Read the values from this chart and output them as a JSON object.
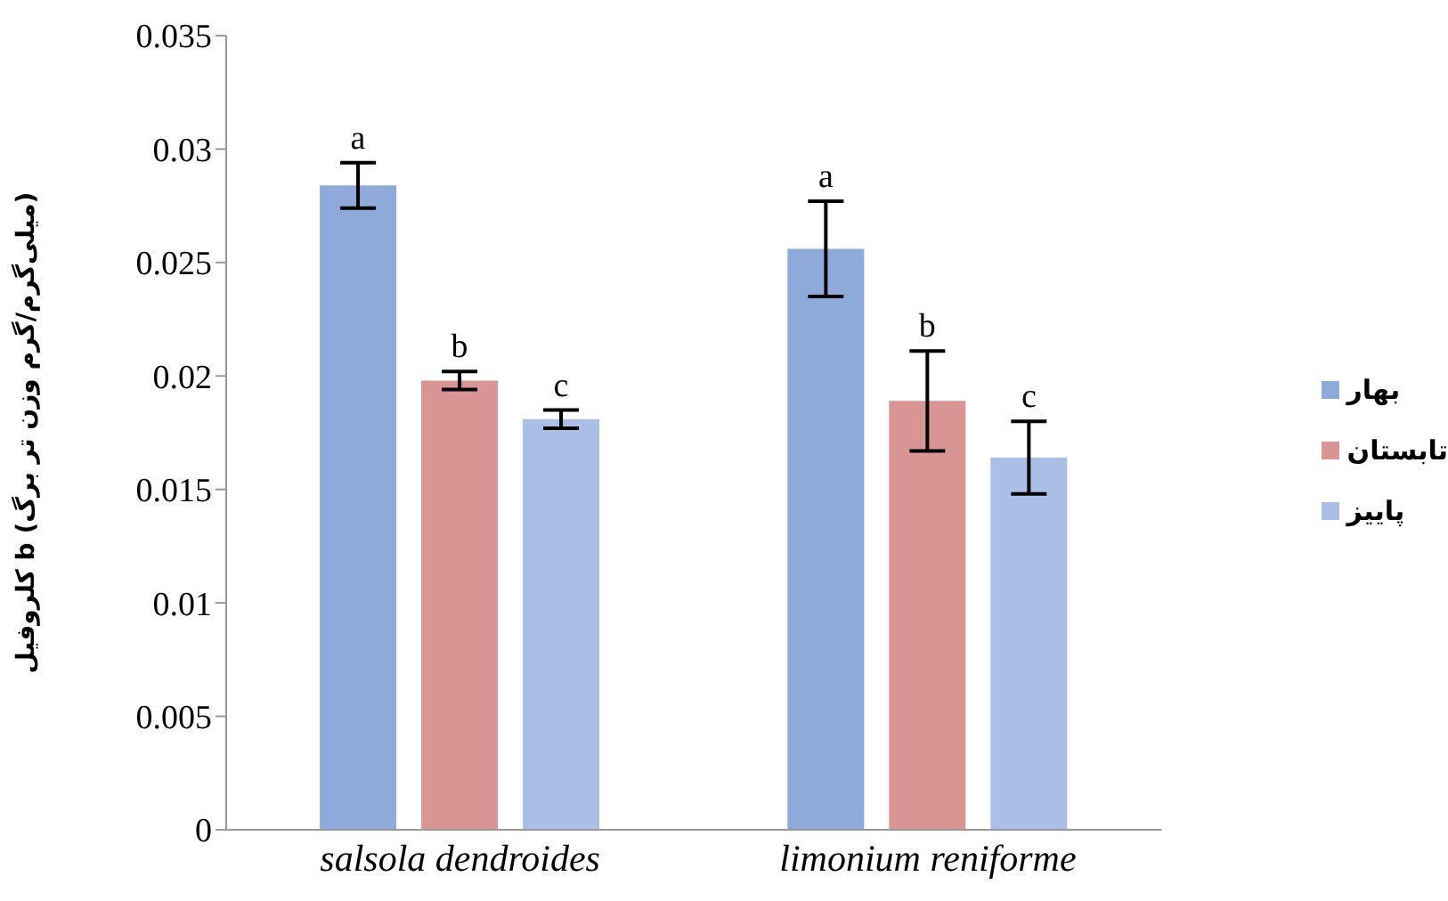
{
  "chart_data": {
    "type": "bar",
    "ylabel": "کلروفیل b (میلی‌گرم/گرم وزن تر برگ)",
    "categories": [
      "salsola dendroides",
      "limonium reniforme"
    ],
    "series": [
      {
        "name": "بهار",
        "color": "#8eaadb",
        "values": [
          0.0284,
          0.0256
        ],
        "errors": [
          0.001,
          0.0021
        ],
        "value_labels": [
          "a",
          "a"
        ]
      },
      {
        "name": "تابستان",
        "color": "#d99594",
        "values": [
          0.0198,
          0.0189
        ],
        "errors": [
          0.0004,
          0.0022
        ],
        "value_labels": [
          "b",
          "b"
        ]
      },
      {
        "name": "پاییز",
        "color": "#a9bfe6",
        "values": [
          0.0181,
          0.0164
        ],
        "errors": [
          0.0004,
          0.0016
        ],
        "value_labels": [
          "c",
          "c"
        ]
      }
    ],
    "ylim": [
      0,
      0.035
    ],
    "yticks": [
      0,
      0.005,
      0.01,
      0.015,
      0.02,
      0.025,
      0.03,
      0.035
    ],
    "legend": "right",
    "grid": false
  }
}
